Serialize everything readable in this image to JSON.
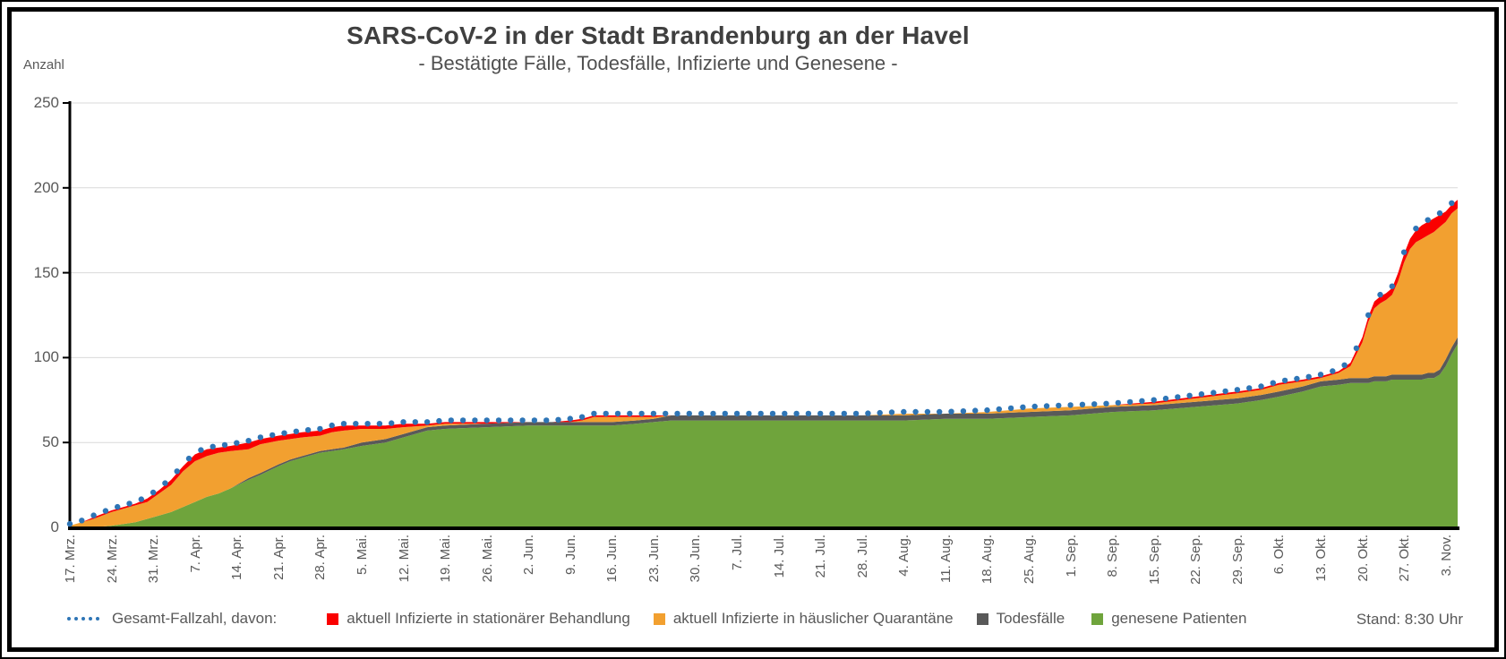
{
  "title": "SARS-CoV-2 in der Stadt Brandenburg an der Havel",
  "subtitle": "- Bestätigte Fälle, Todesfälle, Infizierte und Genesene -",
  "y_axis_title": "Anzahl",
  "status_note": "Stand: 8:30 Uhr",
  "colors": {
    "total_dots": "#2E75B6",
    "hospital": "#FA0000",
    "quarantine": "#F2A030",
    "deaths": "#595959",
    "recovered": "#6FA43C",
    "gridline": "#D9D9D9",
    "axis": "#000000",
    "text": "#595959",
    "title_text": "#3F3F3F"
  },
  "legend": {
    "items": [
      {
        "label": "Gesamt-Fallzahl, davon:",
        "color": "#2E75B6",
        "marker": "dots"
      },
      {
        "label": "aktuell Infizierte in stationärer Behandlung",
        "color": "#FA0000",
        "marker": "square"
      },
      {
        "label": "aktuell Infizierte in häuslicher Quarantäne",
        "color": "#F2A030",
        "marker": "square"
      },
      {
        "label": "Todesfälle",
        "color": "#595959",
        "marker": "square"
      },
      {
        "label": "genesene Patienten",
        "color": "#6FA43C",
        "marker": "square"
      }
    ]
  },
  "chart_data": {
    "type": "area",
    "stacked": true,
    "title": "SARS-CoV-2 in der Stadt Brandenburg an der Havel",
    "subtitle": "- Bestätigte Fälle, Todesfälle, Infizierte und Genesene -",
    "ylabel": "Anzahl",
    "ylim": [
      0,
      250
    ],
    "ytick_step": 50,
    "grid": "horizontal",
    "legend_position": "bottom",
    "x_tick_interval_days": 7,
    "x_start_day": 0,
    "x_end_day": 233,
    "x_tick_labels": [
      "17. Mrz.",
      "24. Mrz.",
      "31. Mrz.",
      "7. Apr.",
      "14. Apr.",
      "21. Apr.",
      "28. Apr.",
      "5. Mai.",
      "12. Mai.",
      "19. Mai.",
      "26. Mai.",
      "2. Jun.",
      "9. Jun.",
      "16. Jun.",
      "23. Jun.",
      "30. Jun.",
      "7. Jul.",
      "14. Jul.",
      "21. Jul.",
      "28. Jul.",
      "4. Aug.",
      "11. Aug.",
      "18. Aug.",
      "25. Aug.",
      "1. Sep.",
      "8. Sep.",
      "15. Sep.",
      "22. Sep.",
      "29. Sep.",
      "6. Okt.",
      "13. Okt.",
      "20. Okt.",
      "27. Okt.",
      "3. Nov."
    ],
    "series": [
      {
        "name": "genesene Patienten",
        "role": "recovered",
        "color": "#6FA43C",
        "style": "area"
      },
      {
        "name": "Todesfälle",
        "role": "deaths",
        "color": "#595959",
        "style": "area"
      },
      {
        "name": "aktuell Infizierte in häuslicher Quarantäne",
        "role": "quarantine",
        "color": "#F2A030",
        "style": "area",
        "derived": "total - recovered - deaths - hospital"
      },
      {
        "name": "aktuell Infizierte in stationärer Behandlung",
        "role": "hospital",
        "color": "#FA0000",
        "style": "area"
      },
      {
        "name": "Gesamt-Fallzahl, davon:",
        "role": "total",
        "color": "#2E75B6",
        "style": "dotted-line"
      }
    ],
    "points": [
      {
        "day": 0,
        "total": 1,
        "rec": 0,
        "dead": 0,
        "hosp": 0
      },
      {
        "day": 2,
        "total": 3,
        "rec": 0,
        "dead": 0,
        "hosp": 0
      },
      {
        "day": 4,
        "total": 6,
        "rec": 0,
        "dead": 0,
        "hosp": 1
      },
      {
        "day": 7,
        "total": 10,
        "rec": 1,
        "dead": 0,
        "hosp": 1
      },
      {
        "day": 9,
        "total": 12,
        "rec": 2,
        "dead": 0,
        "hosp": 1
      },
      {
        "day": 11,
        "total": 14,
        "rec": 3,
        "dead": 0,
        "hosp": 1
      },
      {
        "day": 13,
        "total": 17,
        "rec": 5,
        "dead": 0,
        "hosp": 2
      },
      {
        "day": 15,
        "total": 22,
        "rec": 7,
        "dead": 0,
        "hosp": 2
      },
      {
        "day": 17,
        "total": 28,
        "rec": 9,
        "dead": 0,
        "hosp": 3
      },
      {
        "day": 19,
        "total": 36,
        "rec": 12,
        "dead": 0,
        "hosp": 3
      },
      {
        "day": 21,
        "total": 43,
        "rec": 15,
        "dead": 0,
        "hosp": 4
      },
      {
        "day": 23,
        "total": 46,
        "rec": 18,
        "dead": 0,
        "hosp": 4
      },
      {
        "day": 25,
        "total": 47,
        "rec": 20,
        "dead": 0,
        "hosp": 3
      },
      {
        "day": 27,
        "total": 48,
        "rec": 23,
        "dead": 0,
        "hosp": 3
      },
      {
        "day": 30,
        "total": 50,
        "rec": 28,
        "dead": 1,
        "hosp": 4
      },
      {
        "day": 32,
        "total": 52,
        "rec": 31,
        "dead": 1,
        "hosp": 3
      },
      {
        "day": 35,
        "total": 54,
        "rec": 36,
        "dead": 1,
        "hosp": 3
      },
      {
        "day": 37,
        "total": 55,
        "rec": 39,
        "dead": 1,
        "hosp": 3
      },
      {
        "day": 39,
        "total": 56,
        "rec": 41,
        "dead": 1,
        "hosp": 3
      },
      {
        "day": 42,
        "total": 57,
        "rec": 44,
        "dead": 1,
        "hosp": 3
      },
      {
        "day": 44,
        "total": 59,
        "rec": 45,
        "dead": 1,
        "hosp": 3
      },
      {
        "day": 46,
        "total": 60,
        "rec": 46,
        "dead": 1,
        "hosp": 3
      },
      {
        "day": 49,
        "total": 60,
        "rec": 48,
        "dead": 2,
        "hosp": 2
      },
      {
        "day": 53,
        "total": 60,
        "rec": 50,
        "dead": 2,
        "hosp": 2
      },
      {
        "day": 56,
        "total": 61,
        "rec": 53,
        "dead": 2,
        "hosp": 2
      },
      {
        "day": 60,
        "total": 61,
        "rec": 57,
        "dead": 2,
        "hosp": 1
      },
      {
        "day": 63,
        "total": 62,
        "rec": 58,
        "dead": 2,
        "hosp": 1
      },
      {
        "day": 70,
        "total": 62,
        "rec": 59,
        "dead": 2,
        "hosp": 1
      },
      {
        "day": 77,
        "total": 62,
        "rec": 60,
        "dead": 2,
        "hosp": 0
      },
      {
        "day": 81,
        "total": 62,
        "rec": 60,
        "dead": 2,
        "hosp": 0
      },
      {
        "day": 84,
        "total": 63,
        "rec": 60,
        "dead": 2,
        "hosp": 1
      },
      {
        "day": 86,
        "total": 64,
        "rec": 60,
        "dead": 2,
        "hosp": 1
      },
      {
        "day": 88,
        "total": 66,
        "rec": 60,
        "dead": 2,
        "hosp": 1
      },
      {
        "day": 91,
        "total": 66,
        "rec": 60,
        "dead": 2,
        "hosp": 1
      },
      {
        "day": 95,
        "total": 66,
        "rec": 61,
        "dead": 2,
        "hosp": 1
      },
      {
        "day": 98,
        "total": 66,
        "rec": 62,
        "dead": 2,
        "hosp": 1
      },
      {
        "day": 101,
        "total": 66,
        "rec": 63,
        "dead": 3,
        "hosp": 0
      },
      {
        "day": 112,
        "total": 66,
        "rec": 63,
        "dead": 3,
        "hosp": 0
      },
      {
        "day": 126,
        "total": 66,
        "rec": 63,
        "dead": 3,
        "hosp": 0
      },
      {
        "day": 133,
        "total": 66,
        "rec": 63,
        "dead": 3,
        "hosp": 0
      },
      {
        "day": 140,
        "total": 67,
        "rec": 63,
        "dead": 3,
        "hosp": 0
      },
      {
        "day": 147,
        "total": 67,
        "rec": 64,
        "dead": 3,
        "hosp": 0
      },
      {
        "day": 154,
        "total": 68,
        "rec": 64,
        "dead": 3,
        "hosp": 0
      },
      {
        "day": 161,
        "total": 70,
        "rec": 65,
        "dead": 3,
        "hosp": 0
      },
      {
        "day": 168,
        "total": 71,
        "rec": 66,
        "dead": 3,
        "hosp": 0
      },
      {
        "day": 175,
        "total": 72,
        "rec": 68,
        "dead": 3,
        "hosp": 0
      },
      {
        "day": 182,
        "total": 74,
        "rec": 69,
        "dead": 3,
        "hosp": 1
      },
      {
        "day": 189,
        "total": 77,
        "rec": 71,
        "dead": 3,
        "hosp": 1
      },
      {
        "day": 196,
        "total": 80,
        "rec": 73,
        "dead": 3,
        "hosp": 1
      },
      {
        "day": 200,
        "total": 82,
        "rec": 75,
        "dead": 3,
        "hosp": 1
      },
      {
        "day": 203,
        "total": 85,
        "rec": 77,
        "dead": 3,
        "hosp": 1
      },
      {
        "day": 207,
        "total": 87,
        "rec": 80,
        "dead": 3,
        "hosp": 1
      },
      {
        "day": 210,
        "total": 89,
        "rec": 83,
        "dead": 3,
        "hosp": 1
      },
      {
        "day": 213,
        "total": 92,
        "rec": 84,
        "dead": 3,
        "hosp": 1
      },
      {
        "day": 215,
        "total": 97,
        "rec": 85,
        "dead": 3,
        "hosp": 2
      },
      {
        "day": 217,
        "total": 112,
        "rec": 85,
        "dead": 3,
        "hosp": 3
      },
      {
        "day": 218,
        "total": 124,
        "rec": 85,
        "dead": 3,
        "hosp": 3
      },
      {
        "day": 219,
        "total": 133,
        "rec": 86,
        "dead": 3,
        "hosp": 4
      },
      {
        "day": 220,
        "total": 136,
        "rec": 86,
        "dead": 3,
        "hosp": 4
      },
      {
        "day": 221,
        "total": 138,
        "rec": 86,
        "dead": 3,
        "hosp": 4
      },
      {
        "day": 222,
        "total": 141,
        "rec": 87,
        "dead": 3,
        "hosp": 4
      },
      {
        "day": 223,
        "total": 150,
        "rec": 87,
        "dead": 3,
        "hosp": 5
      },
      {
        "day": 224,
        "total": 161,
        "rec": 87,
        "dead": 3,
        "hosp": 5
      },
      {
        "day": 225,
        "total": 170,
        "rec": 87,
        "dead": 3,
        "hosp": 6
      },
      {
        "day": 226,
        "total": 175,
        "rec": 87,
        "dead": 3,
        "hosp": 7
      },
      {
        "day": 227,
        "total": 178,
        "rec": 87,
        "dead": 3,
        "hosp": 8
      },
      {
        "day": 228,
        "total": 180,
        "rec": 88,
        "dead": 3,
        "hosp": 8
      },
      {
        "day": 229,
        "total": 182,
        "rec": 88,
        "dead": 3,
        "hosp": 8
      },
      {
        "day": 230,
        "total": 184,
        "rec": 90,
        "dead": 3,
        "hosp": 7
      },
      {
        "day": 231,
        "total": 186,
        "rec": 95,
        "dead": 4,
        "hosp": 6
      },
      {
        "day": 232,
        "total": 190,
        "rec": 102,
        "dead": 4,
        "hosp": 5
      },
      {
        "day": 233,
        "total": 193,
        "rec": 108,
        "dead": 4,
        "hosp": 5
      }
    ]
  }
}
